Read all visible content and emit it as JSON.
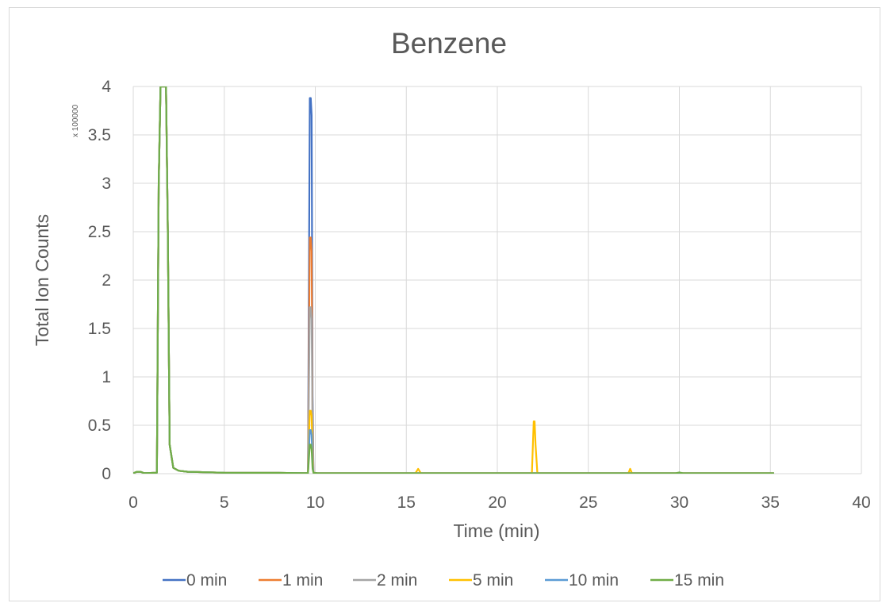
{
  "chart_data": {
    "type": "line",
    "title": "Benzene",
    "xlabel": "Time (min)",
    "ylabel": "Total Ion Counts",
    "y_multiplier_label": "x 100000",
    "xlim": [
      0,
      40
    ],
    "ylim": [
      0,
      4
    ],
    "x_ticks": [
      "0",
      "5",
      "10",
      "15",
      "20",
      "25",
      "30",
      "35",
      "40"
    ],
    "y_ticks": [
      "0",
      "0.5",
      "1",
      "1.5",
      "2",
      "2.5",
      "3",
      "3.5",
      "4"
    ],
    "grid": true,
    "legend_position": "bottom",
    "series": [
      {
        "name": "0 min",
        "color": "#4472C4",
        "x": [
          0,
          0.2,
          0.4,
          0.6,
          1.3,
          1.4,
          1.5,
          1.6,
          1.7,
          1.8,
          1.9,
          2.0,
          2.2,
          2.5,
          3,
          5,
          8,
          9.6,
          9.7,
          9.75,
          9.8,
          9.85,
          9.9,
          10.1,
          15,
          20,
          25,
          30,
          35,
          35.2
        ],
        "y": [
          0.005,
          0.02,
          0.02,
          0.005,
          0.01,
          3.0,
          4.0,
          4.0,
          4.0,
          4.0,
          2.5,
          0.3,
          0.06,
          0.03,
          0.02,
          0.01,
          0.008,
          0.005,
          3.88,
          3.88,
          3.7,
          0.8,
          0.01,
          0.005,
          0.004,
          0.004,
          0.004,
          0.004,
          0.004,
          0.004
        ]
      },
      {
        "name": "1 min",
        "color": "#ED7D31",
        "x": [
          0,
          0.2,
          0.4,
          0.6,
          1.3,
          1.4,
          1.5,
          1.6,
          1.7,
          1.8,
          1.9,
          2.0,
          2.2,
          2.5,
          3,
          5,
          8,
          9.6,
          9.7,
          9.75,
          9.8,
          9.85,
          9.9,
          10.1,
          15,
          20,
          25,
          30,
          35,
          35.2
        ],
        "y": [
          0.005,
          0.02,
          0.02,
          0.005,
          0.01,
          3.0,
          4.0,
          4.0,
          4.0,
          4.0,
          2.5,
          0.3,
          0.06,
          0.03,
          0.02,
          0.01,
          0.008,
          0.005,
          2.44,
          2.44,
          2.3,
          0.5,
          0.01,
          0.005,
          0.004,
          0.004,
          0.004,
          0.004,
          0.004,
          0.004
        ]
      },
      {
        "name": "2 min",
        "color": "#A5A5A5",
        "x": [
          0,
          0.2,
          0.4,
          0.6,
          1.3,
          1.4,
          1.5,
          1.6,
          1.7,
          1.8,
          1.9,
          2.0,
          2.2,
          2.5,
          3,
          5,
          8,
          9.6,
          9.7,
          9.75,
          9.8,
          9.85,
          9.9,
          10.1,
          15,
          20,
          25,
          30,
          35,
          35.2
        ],
        "y": [
          0.005,
          0.02,
          0.02,
          0.005,
          0.01,
          3.0,
          4.0,
          4.0,
          4.0,
          4.0,
          2.5,
          0.3,
          0.06,
          0.03,
          0.02,
          0.01,
          0.008,
          0.005,
          1.72,
          1.72,
          1.6,
          0.4,
          0.01,
          0.005,
          0.004,
          0.004,
          0.004,
          0.004,
          0.004,
          0.004
        ]
      },
      {
        "name": "5 min",
        "color": "#FFC000",
        "x": [
          0,
          0.2,
          0.4,
          0.6,
          1.3,
          1.4,
          1.5,
          1.6,
          1.7,
          1.8,
          1.9,
          2.0,
          2.2,
          2.5,
          3,
          5,
          8,
          9.6,
          9.7,
          9.75,
          9.8,
          9.85,
          9.9,
          10.1,
          15.5,
          15.65,
          15.8,
          21.9,
          22.0,
          22.05,
          22.1,
          22.2,
          27.2,
          27.3,
          27.4,
          30,
          35,
          35.2
        ],
        "y": [
          0.005,
          0.02,
          0.02,
          0.005,
          0.01,
          3.0,
          4.0,
          4.0,
          4.0,
          4.0,
          2.5,
          0.3,
          0.06,
          0.03,
          0.02,
          0.01,
          0.008,
          0.005,
          0.65,
          0.65,
          0.6,
          0.15,
          0.01,
          0.005,
          0.004,
          0.05,
          0.004,
          0.004,
          0.54,
          0.54,
          0.3,
          0.004,
          0.004,
          0.05,
          0.004,
          0.004,
          0.004,
          0.004
        ]
      },
      {
        "name": "10 min",
        "color": "#5B9BD5",
        "x": [
          0,
          0.2,
          0.4,
          0.6,
          1.3,
          1.4,
          1.5,
          1.6,
          1.7,
          1.8,
          1.9,
          2.0,
          2.2,
          2.5,
          3,
          5,
          8,
          9.6,
          9.7,
          9.75,
          9.8,
          9.85,
          9.9,
          10.1,
          15,
          20,
          25,
          30,
          35,
          35.2
        ],
        "y": [
          0.005,
          0.02,
          0.02,
          0.005,
          0.01,
          3.0,
          4.0,
          4.0,
          4.0,
          4.0,
          2.5,
          0.3,
          0.06,
          0.03,
          0.02,
          0.01,
          0.008,
          0.005,
          0.45,
          0.45,
          0.4,
          0.1,
          0.01,
          0.005,
          0.004,
          0.004,
          0.004,
          0.004,
          0.004,
          0.004
        ]
      },
      {
        "name": "15 min",
        "color": "#70AD47",
        "x": [
          0,
          0.2,
          0.4,
          0.6,
          1.3,
          1.4,
          1.5,
          1.6,
          1.7,
          1.8,
          1.9,
          2.0,
          2.2,
          2.5,
          3,
          5,
          8,
          9.6,
          9.7,
          9.75,
          9.8,
          9.85,
          9.9,
          10.1,
          15,
          20,
          25,
          29.8,
          30,
          30.2,
          35,
          35.2
        ],
        "y": [
          0.005,
          0.02,
          0.02,
          0.005,
          0.01,
          3.0,
          4.0,
          4.0,
          4.0,
          4.0,
          2.5,
          0.3,
          0.06,
          0.03,
          0.02,
          0.01,
          0.008,
          0.005,
          0.3,
          0.3,
          0.25,
          0.05,
          0.01,
          0.005,
          0.004,
          0.004,
          0.004,
          0.004,
          0.012,
          0.004,
          0.004,
          0.004
        ]
      }
    ]
  }
}
